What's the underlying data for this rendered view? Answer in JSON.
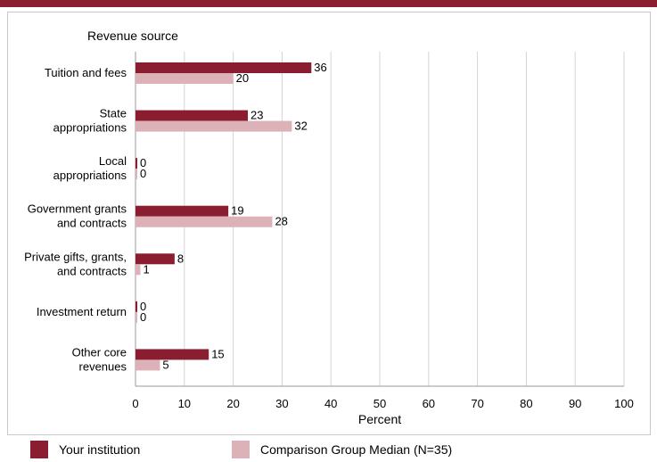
{
  "chart_data": {
    "type": "bar",
    "orientation": "horizontal",
    "title": "Revenue source",
    "xlabel": "Percent",
    "ylabel": "",
    "xlim": [
      0,
      100
    ],
    "xticks": [
      0,
      10,
      20,
      30,
      40,
      50,
      60,
      70,
      80,
      90,
      100
    ],
    "grid": true,
    "legend_position": "bottom",
    "categories": [
      [
        "Tuition and fees"
      ],
      [
        "State",
        "appropriations"
      ],
      [
        "Local",
        "appropriations"
      ],
      [
        "Government grants",
        "and contracts"
      ],
      [
        "Private gifts, grants,",
        "and contracts"
      ],
      [
        "Investment return"
      ],
      [
        "Other core",
        "revenues"
      ]
    ],
    "series": [
      {
        "name": "Your institution",
        "color": "#8a1d2f",
        "values": [
          36,
          23,
          0,
          19,
          8,
          0,
          15
        ]
      },
      {
        "name": "Comparison Group Median (N=35)",
        "color": "#dcb2b8",
        "values": [
          20,
          32,
          0,
          28,
          1,
          0,
          5
        ]
      }
    ]
  },
  "legend": {
    "items": [
      {
        "label": "Your institution",
        "color": "#8a1d2f"
      },
      {
        "label": "Comparison Group Median (N=35)",
        "color": "#dcb2b8"
      }
    ]
  }
}
